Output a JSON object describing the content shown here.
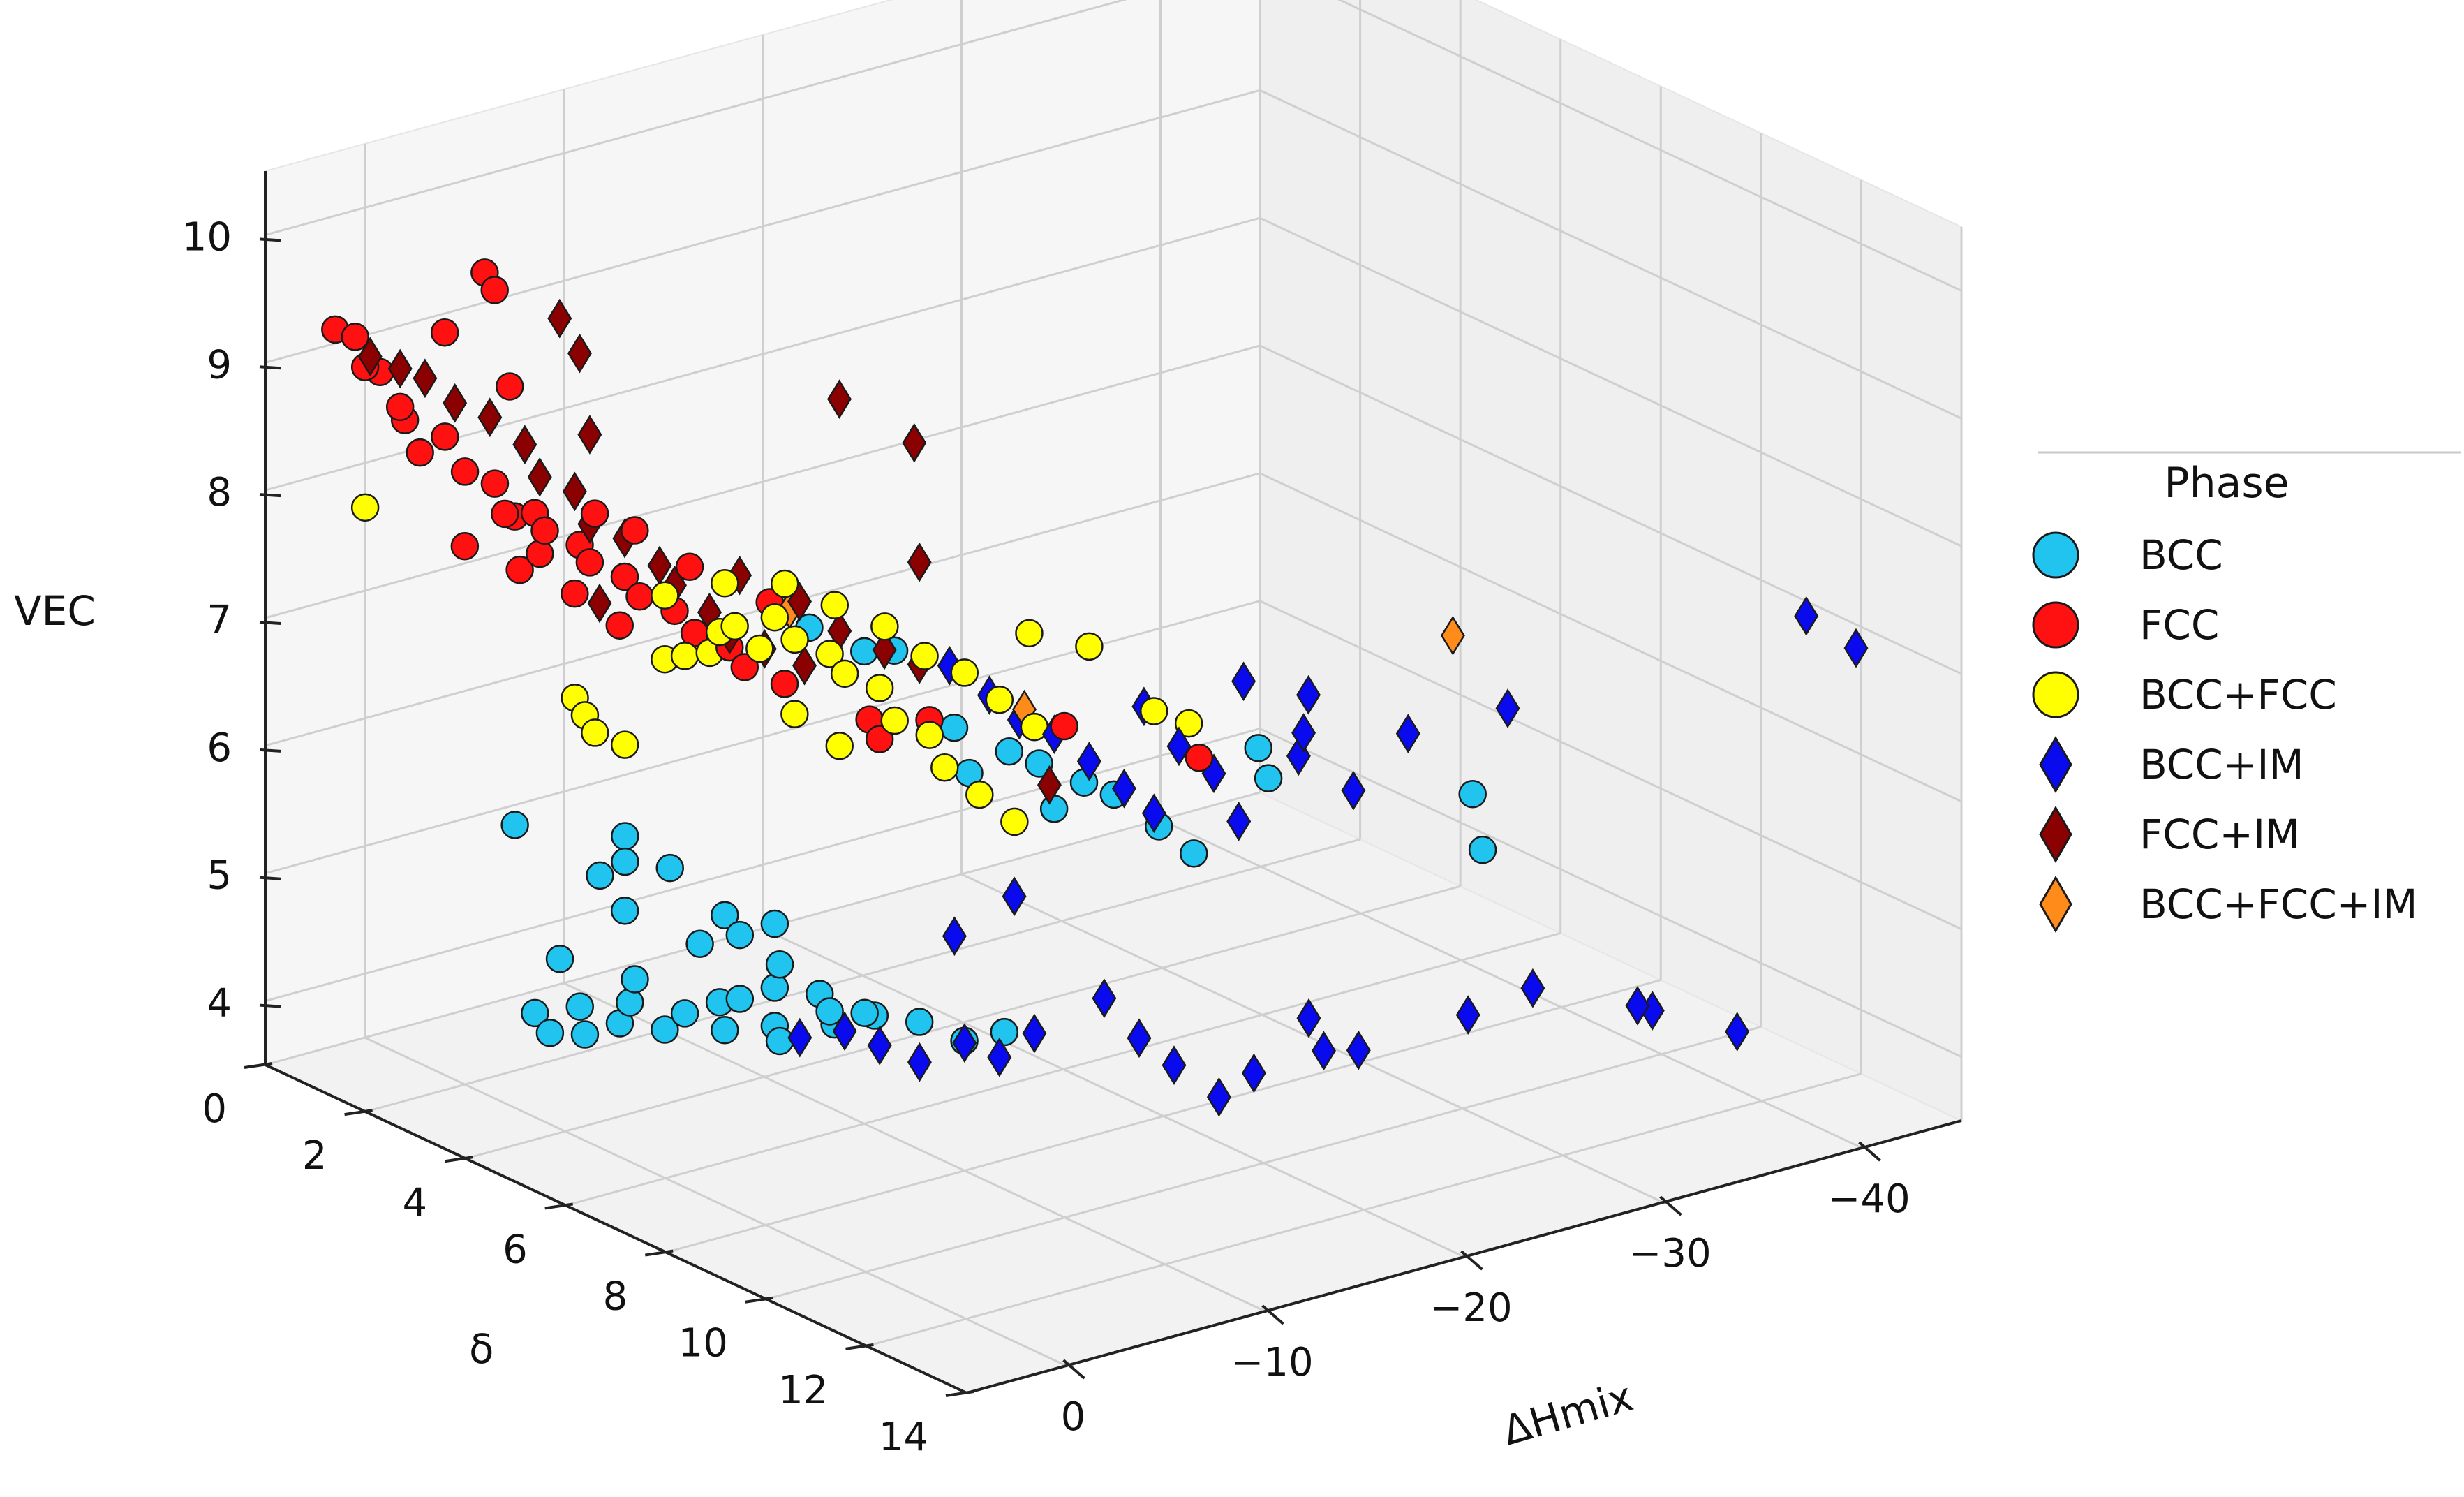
{
  "chart_data": {
    "type": "scatter",
    "projection": "3d",
    "axes": {
      "x": {
        "label": "ΔHmix",
        "ticks": [
          0,
          -10,
          -20,
          -30,
          -40
        ],
        "tick_labels": [
          "0",
          "−10",
          "−20",
          "−30",
          "−40"
        ],
        "range": [
          5,
          -45
        ]
      },
      "y": {
        "label": "δ",
        "ticks": [
          0,
          2,
          4,
          6,
          8,
          10,
          12,
          14
        ],
        "tick_labels": [
          "0",
          "2",
          "4",
          "6",
          "8",
          "10",
          "12",
          "14"
        ],
        "range": [
          0,
          14
        ]
      },
      "z": {
        "label": "VEC",
        "ticks": [
          4,
          5,
          6,
          7,
          8,
          9,
          10
        ],
        "tick_labels": [
          "4",
          "5",
          "6",
          "7",
          "8",
          "9",
          "10"
        ],
        "range": [
          3.5,
          10.5
        ]
      }
    },
    "grid": true,
    "legend": {
      "title": "Phase",
      "position": "right"
    },
    "series": [
      {
        "name": "BCC",
        "marker": "circle",
        "color": "#21c4ef",
        "points": [
          [
            -1,
            3,
            4.2
          ],
          [
            -1,
            3.3,
            4.1
          ],
          [
            -2,
            3.6,
            4.1
          ],
          [
            -2,
            3.5,
            4.3
          ],
          [
            -3,
            3.9,
            4.2
          ],
          [
            -2,
            3.1,
            4.6
          ],
          [
            -3,
            4.1,
            4.4
          ],
          [
            -4,
            4.4,
            4.2
          ],
          [
            -3,
            4.2,
            4.6
          ],
          [
            -4,
            4.8,
            4.4
          ],
          [
            -5,
            5.1,
            4.5
          ],
          [
            -5,
            5.2,
            4.3
          ],
          [
            -5,
            5.5,
            4.6
          ],
          [
            -6,
            5.8,
            4.4
          ],
          [
            -6,
            5.9,
            4.3
          ],
          [
            -6,
            5.8,
            4.7
          ],
          [
            -6,
            5.9,
            4.9
          ],
          [
            -5,
            5.5,
            5.1
          ],
          [
            -7,
            6.3,
            4.7
          ],
          [
            -7,
            6.5,
            4.6
          ],
          [
            -8,
            6.8,
            4.6
          ],
          [
            -10,
            7.1,
            4.5
          ],
          [
            -11,
            7.6,
            4.4
          ],
          [
            -12,
            8,
            4.5
          ],
          [
            -8,
            6.2,
            4.4
          ],
          [
            -9,
            6.6,
            4.5
          ],
          [
            -2,
            4.4,
            5.8
          ],
          [
            -2,
            4.4,
            5.6
          ],
          [
            -3,
            4.9,
            5.6
          ],
          [
            -2,
            3.9,
            5.4
          ],
          [
            -1,
            2.6,
            5.6
          ],
          [
            -4,
            5.1,
            5.0
          ],
          [
            -3,
            4,
            5.1
          ],
          [
            -6,
            5.8,
            5.2
          ],
          [
            -5,
            5.2,
            5.2
          ],
          [
            -10,
            6,
            7.2
          ],
          [
            -12,
            7,
            6.7
          ],
          [
            -13,
            7.7,
            6.6
          ],
          [
            -14,
            7.9,
            6.5
          ],
          [
            -15,
            8.4,
            6.4
          ],
          [
            -16,
            8.6,
            6.3
          ],
          [
            -17,
            9.1,
            6.1
          ],
          [
            -12,
            7.3,
            6.4
          ],
          [
            -14,
            8.2,
            6.2
          ],
          [
            -18,
            9.4,
            5.9
          ],
          [
            -22,
            9.1,
            6.5
          ],
          [
            -22,
            9.3,
            6.3
          ],
          [
            -30,
            10.2,
            6.0
          ],
          [
            -30,
            10.4,
            5.6
          ],
          [
            -9,
            5.3,
            7.3
          ],
          [
            -11,
            6.2,
            7.2
          ]
        ]
      },
      {
        "name": "FCC",
        "marker": "circle",
        "color": "#ff1111",
        "points": [
          [
            4,
            1,
            9.4
          ],
          [
            3,
            1,
            9.3
          ],
          [
            3,
            1.2,
            9.1
          ],
          [
            2,
            1.1,
            9.0
          ],
          [
            2,
            1.5,
            8.8
          ],
          [
            1,
            1.2,
            8.6
          ],
          [
            1,
            1.5,
            8.4
          ],
          [
            0,
            1.6,
            8.5
          ],
          [
            0,
            2,
            8.3
          ],
          [
            -1,
            2.2,
            8.2
          ],
          [
            -1,
            2.4,
            8.0
          ],
          [
            -2,
            2.6,
            8.0
          ],
          [
            -2,
            2.8,
            7.9
          ],
          [
            -3,
            3.1,
            7.8
          ],
          [
            -3,
            3.3,
            7.7
          ],
          [
            -4,
            3.6,
            7.6
          ],
          [
            -4,
            3.9,
            7.5
          ],
          [
            -5,
            4.2,
            7.4
          ],
          [
            -5,
            4.6,
            7.3
          ],
          [
            -6,
            4.9,
            7.2
          ],
          [
            -6,
            5.2,
            7.1
          ],
          [
            -7,
            5.6,
            7.0
          ],
          [
            -2,
            1.6,
            9.7
          ],
          [
            -2,
            1.8,
            9.6
          ],
          [
            -1,
            1.2,
            9.2
          ],
          [
            -2,
            2.1,
            8.9
          ],
          [
            -1,
            1.6,
            7.6
          ],
          [
            -2,
            2.7,
            7.7
          ],
          [
            -3,
            3.4,
            8.1
          ],
          [
            -2,
            2.3,
            7.5
          ],
          [
            -4,
            3.8,
            8.0
          ],
          [
            -6,
            5.7,
            7.7
          ],
          [
            -5,
            4.5,
            7.8
          ],
          [
            -8,
            7.1,
            6.8
          ],
          [
            -12,
            8.6,
            7.0
          ],
          [
            -13,
            8.8,
            7.0
          ],
          [
            -16,
            10.3,
            6.9
          ],
          [
            -9,
            6.5,
            6.8
          ],
          [
            -10,
            7.3,
            6.9
          ],
          [
            -4,
            3.5,
            7.2
          ],
          [
            -3,
            3,
            7.4
          ],
          [
            -2,
            2.2,
            7.9
          ]
        ]
      },
      {
        "name": "BCC+FCC",
        "marker": "circle",
        "color": "#ffff00",
        "points": [
          [
            3,
            1.2,
            8.0
          ],
          [
            -2,
            3.4,
            6.7
          ],
          [
            -2,
            3.6,
            6.6
          ],
          [
            -2,
            3.8,
            6.5
          ],
          [
            -3,
            4,
            6.4
          ],
          [
            -4,
            4.4,
            7.1
          ],
          [
            -4,
            4.8,
            7.2
          ],
          [
            -5,
            5.1,
            7.4
          ],
          [
            -5,
            5.4,
            7.5
          ],
          [
            -6,
            5.8,
            7.6
          ],
          [
            -6,
            6.2,
            7.5
          ],
          [
            -7,
            6.5,
            7.4
          ],
          [
            -7,
            6.8,
            7.3
          ],
          [
            -8,
            7.1,
            7.2
          ],
          [
            -8,
            7.4,
            7.0
          ],
          [
            -9,
            7.7,
            6.9
          ],
          [
            -9,
            8,
            6.7
          ],
          [
            -10,
            8.3,
            6.5
          ],
          [
            -11,
            8.6,
            6.3
          ],
          [
            -6,
            6,
            7.9
          ],
          [
            -7,
            6.6,
            7.8
          ],
          [
            -8,
            7.2,
            7.7
          ],
          [
            -9,
            7.6,
            7.5
          ],
          [
            -10,
            8,
            7.4
          ],
          [
            -11,
            8.3,
            7.2
          ],
          [
            -12,
            8.6,
            7.0
          ],
          [
            -6,
            5.5,
            7.3
          ],
          [
            -5,
            4.9,
            7.2
          ],
          [
            -7,
            5.8,
            6.8
          ],
          [
            -8,
            6.3,
            6.6
          ],
          [
            -14,
            8.9,
            7.6
          ],
          [
            -16,
            9.4,
            7.1
          ],
          [
            -18,
            9.3,
            6.9
          ],
          [
            -13,
            8.1,
            7.6
          ],
          [
            -5,
            5.2,
            7.8
          ],
          [
            -4,
            4.4,
            7.6
          ]
        ]
      },
      {
        "name": "BCC+IM",
        "marker": "diamond",
        "color": "#0a0aef",
        "points": [
          [
            -6,
            6.3,
            4.4
          ],
          [
            -7,
            6.8,
            4.5
          ],
          [
            -8,
            7.1,
            4.4
          ],
          [
            -9,
            7.5,
            4.3
          ],
          [
            -10,
            8,
            4.5
          ],
          [
            -11,
            8.3,
            4.4
          ],
          [
            -12,
            8.6,
            4.6
          ],
          [
            -14,
            9.2,
            4.9
          ],
          [
            -15,
            9.5,
            4.6
          ],
          [
            -16,
            9.8,
            4.4
          ],
          [
            -17,
            10.3,
            4.2
          ],
          [
            -18,
            10.6,
            4.4
          ],
          [
            -20,
            10.9,
            4.8
          ],
          [
            -20,
            11.2,
            4.6
          ],
          [
            -22,
            11.1,
            4.5
          ],
          [
            -27,
            11.3,
            4.6
          ],
          [
            -30,
            11.4,
            4.7
          ],
          [
            -33,
            12.3,
            4.6
          ],
          [
            -34,
            12.2,
            4.5
          ],
          [
            -37,
            12.7,
            4.3
          ],
          [
            -10,
            7.8,
            5.3
          ],
          [
            -12,
            8.2,
            5.6
          ],
          [
            -16,
            9.2,
            7.1
          ],
          [
            -17,
            9.5,
            6.8
          ],
          [
            -18,
            9.8,
            6.6
          ],
          [
            -19,
            9.9,
            6.2
          ],
          [
            -21,
            10.3,
            6.7
          ],
          [
            -23,
            10.6,
            6.4
          ],
          [
            -26,
            10.5,
            6.7
          ],
          [
            -30,
            10.9,
            6.8
          ],
          [
            -44,
            11.3,
            7.0
          ],
          [
            -46,
            11.5,
            6.7
          ],
          [
            -10,
            7.7,
            7.4
          ],
          [
            -11,
            8.1,
            7.2
          ],
          [
            -12,
            8.3,
            7.0
          ],
          [
            -13,
            8.6,
            6.9
          ],
          [
            -14,
            8.9,
            6.7
          ],
          [
            -15,
            9.2,
            6.5
          ],
          [
            -16,
            9.4,
            6.3
          ],
          [
            -20,
            9.6,
            7.2
          ],
          [
            -22,
            10.1,
            7.1
          ],
          [
            -21,
            10.4,
            6.9
          ]
        ]
      },
      {
        "name": "FCC+IM",
        "marker": "diamond",
        "color": "#8b0000",
        "points": [
          [
            3,
            1.3,
            9.2
          ],
          [
            2,
            1.5,
            9.1
          ],
          [
            1,
            1.6,
            9.0
          ],
          [
            0,
            1.8,
            8.8
          ],
          [
            -1,
            2.1,
            8.7
          ],
          [
            -2,
            2.4,
            8.5
          ],
          [
            -2,
            2.7,
            8.3
          ],
          [
            -3,
            3,
            8.2
          ],
          [
            -3,
            3.3,
            8.0
          ],
          [
            -4,
            3.6,
            7.9
          ],
          [
            -5,
            3.9,
            7.7
          ],
          [
            -5,
            4.2,
            7.6
          ],
          [
            -6,
            4.5,
            7.4
          ],
          [
            -6,
            4.9,
            7.3
          ],
          [
            -7,
            5.2,
            7.2
          ],
          [
            -8,
            5.6,
            7.1
          ],
          [
            -3,
            2.7,
            9.5
          ],
          [
            -3,
            3.1,
            9.3
          ],
          [
            -3,
            3.3,
            8.7
          ],
          [
            -9,
            5.9,
            9.2
          ],
          [
            -11,
            6.6,
            8.9
          ],
          [
            -10,
            7.1,
            8.1
          ],
          [
            -12,
            8.9,
            6.6
          ],
          [
            -4,
            3.1,
            7.3
          ],
          [
            -6,
            5.1,
            7.8
          ],
          [
            -7,
            5.9,
            7.7
          ],
          [
            -8,
            6.3,
            7.5
          ],
          [
            -9,
            6.8,
            7.4
          ],
          [
            -10,
            7.1,
            7.3
          ]
        ]
      },
      {
        "name": "BCC+FCC+IM",
        "marker": "diamond",
        "color": "#ff8c1a",
        "points": [
          [
            -7,
            5.7,
            7.6
          ],
          [
            -12,
            8.4,
            7.1
          ],
          [
            -28,
            10.6,
            7.4
          ]
        ]
      }
    ]
  }
}
